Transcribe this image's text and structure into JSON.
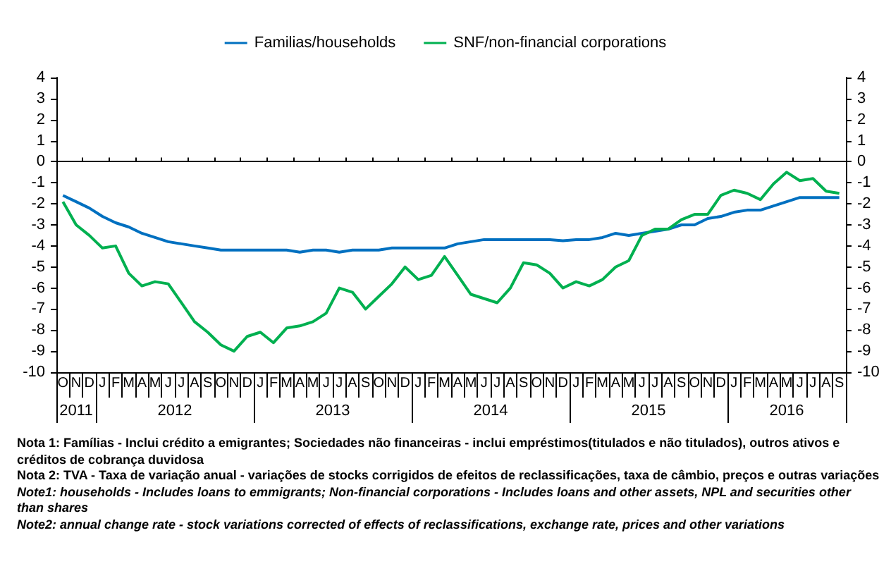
{
  "chart_data": {
    "type": "line",
    "categories": [
      "O",
      "N",
      "D",
      "J",
      "F",
      "M",
      "A",
      "M",
      "J",
      "J",
      "A",
      "S",
      "O",
      "N",
      "D",
      "J",
      "F",
      "M",
      "A",
      "M",
      "J",
      "J",
      "A",
      "S",
      "O",
      "N",
      "D",
      "J",
      "F",
      "M",
      "A",
      "M",
      "J",
      "J",
      "A",
      "S",
      "O",
      "N",
      "D",
      "J",
      "F",
      "M",
      "A",
      "M",
      "J",
      "J",
      "A",
      "S",
      "O",
      "N",
      "D",
      "J",
      "F",
      "M",
      "A",
      "M",
      "J",
      "J",
      "A",
      "S"
    ],
    "series": [
      {
        "name": "Familias/households",
        "color": "#0070c0",
        "values": [
          -1.6,
          -1.9,
          -2.2,
          -2.6,
          -2.9,
          -3.1,
          -3.4,
          -3.6,
          -3.8,
          -3.9,
          -4.0,
          -4.1,
          -4.2,
          -4.2,
          -4.2,
          -4.2,
          -4.2,
          -4.2,
          -4.3,
          -4.2,
          -4.2,
          -4.3,
          -4.2,
          -4.2,
          -4.2,
          -4.1,
          -4.1,
          -4.1,
          -4.1,
          -4.1,
          -3.9,
          -3.8,
          -3.7,
          -3.7,
          -3.7,
          -3.7,
          -3.7,
          -3.7,
          -3.75,
          -3.7,
          -3.7,
          -3.6,
          -3.4,
          -3.5,
          -3.4,
          -3.3,
          -3.2,
          -3.0,
          -3.0,
          -2.7,
          -2.6,
          -2.4,
          -2.3,
          -2.3,
          -2.1,
          -1.9,
          -1.7,
          -1.7,
          -1.7,
          -1.7
        ]
      },
      {
        "name": "SNF/non-financial corporations",
        "color": "#00b050",
        "values": [
          -1.9,
          -3.0,
          -3.5,
          -4.1,
          -4.0,
          -5.3,
          -5.9,
          -5.7,
          -5.8,
          -6.7,
          -7.6,
          -8.1,
          -8.7,
          -9.0,
          -8.3,
          -8.1,
          -8.6,
          -7.9,
          -7.8,
          -7.6,
          -7.2,
          -6.0,
          -6.2,
          -7.0,
          -6.4,
          -5.8,
          -5.0,
          -5.6,
          -5.4,
          -4.5,
          -5.4,
          -6.3,
          -6.5,
          -6.7,
          -6.0,
          -4.8,
          -4.9,
          -5.3,
          -6.0,
          -5.7,
          -5.9,
          -5.6,
          -5.0,
          -4.7,
          -3.5,
          -3.2,
          -3.2,
          -2.75,
          -2.5,
          -2.5,
          -1.6,
          -1.35,
          -1.5,
          -1.8,
          -1.05,
          -0.5,
          -0.9,
          -0.8,
          -1.4,
          -1.5
        ]
      }
    ],
    "ylim": [
      -10,
      4
    ],
    "yticks": [
      -10,
      -9,
      -8,
      -7,
      -6,
      -5,
      -4,
      -3,
      -2,
      -1,
      0,
      1,
      2,
      3,
      4
    ],
    "y2lim": [
      -10,
      4
    ],
    "y2ticks": [
      -10,
      -9,
      -8,
      -7,
      -6,
      -5,
      -4,
      -3,
      -2,
      -1,
      0,
      1,
      2,
      3,
      4
    ],
    "ref_lines": [
      {
        "axis": "y",
        "value": 0
      }
    ],
    "legend": "top",
    "grid": false,
    "marker": "none",
    "line_style": "solid",
    "annotations": [
      "2011",
      "2012",
      "2013",
      "2014",
      "2015",
      "2016",
      "Nota 1: Famílias - Inclui crédito a emigrantes; Sociedades não financeiras  - inclui empréstimos(titulados e não titulados), outros ativos e créditos de cobrança duvidosa",
      "Nota 2: TVA - Taxa de variação anual - variações de stocks corrigidos de efeitos de reclassificações,  taxa de câmbio, preços e outras variações",
      "Note1: households - Includes loans to emmigrants; Non-financial  corporations - Includes loans and other assets, NPL and securities other than shares",
      "Note2: annual change rate - stock variations corrected of effects of reclassifications, exchange rate, prices and other variations"
    ]
  }
}
